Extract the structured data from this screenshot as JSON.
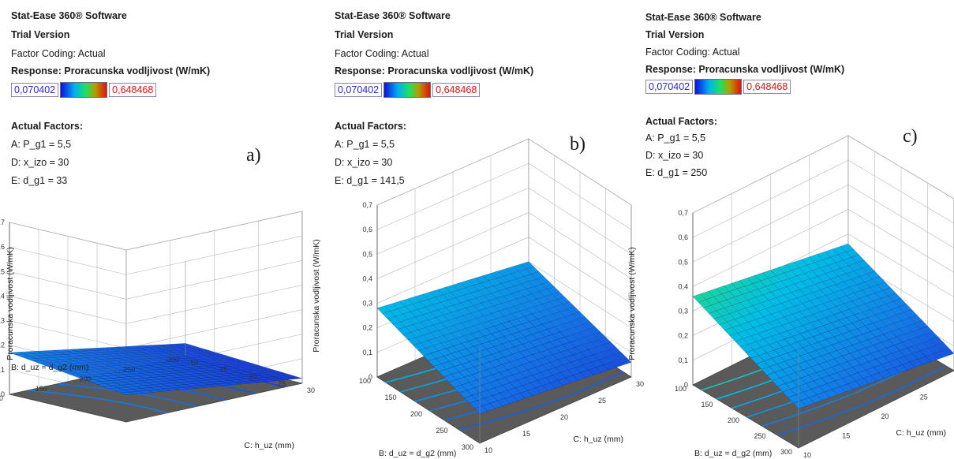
{
  "header": {
    "software": "Stat-Ease 360® Software",
    "version": "Trial Version",
    "coding": "Factor Coding: Actual",
    "response": "Response: Proracunska vodljivost (W/mK)",
    "legend_min": "0,070402",
    "legend_max": "0,648468",
    "actual_factors": "Actual Factors:"
  },
  "colors": {
    "legend_min": "#2a2ae0",
    "legend_max": "#e81010",
    "floor": "#5a5a5a",
    "surface_low": "#1b2fd6",
    "surface_high": "#30e860"
  },
  "axis_labels": {
    "z": "Proracunska vodljivost (W/mK)",
    "b": "B: d_uz = d_g2 (mm)",
    "c": "C: h_uz (mm)"
  },
  "panels": [
    {
      "label": "a)",
      "factors": [
        "A: P_g1 = 5,5",
        "D: x_izo = 30",
        "E: d_g1 = 33"
      ]
    },
    {
      "label": "b)",
      "factors": [
        "A: P_g1 = 5,5",
        "D: x_izo = 30",
        "E: d_g1 = 141,5"
      ]
    },
    {
      "label": "c)",
      "factors": [
        "A: P_g1 = 5,5",
        "D: x_izo = 30",
        "E: d_g1 = 250"
      ]
    }
  ],
  "chart_data": [
    {
      "type": "surface",
      "x": {
        "name": "B: d_uz = d_g2 (mm)",
        "ticks": [
          100,
          150,
          200,
          250,
          300
        ],
        "range": [
          100,
          300
        ]
      },
      "y": {
        "name": "C: h_uz (mm)",
        "ticks": [
          10,
          15,
          20,
          25,
          30
        ],
        "range": [
          10,
          30
        ]
      },
      "z": {
        "name": "Proracunska vodljivost (W/mK)",
        "ticks": [
          0,
          0.1,
          0.2,
          0.3,
          0.4,
          0.5,
          0.6,
          0.7
        ],
        "tick_labels": [
          "0",
          "0,1",
          "0,2",
          "0,3",
          "0,4",
          "0,5",
          "0,6",
          "0,7"
        ],
        "range": [
          0,
          0.7
        ]
      },
      "corners": {
        "b100_c10": 0.17,
        "b300_c10": 0.05,
        "b100_c30": 0.11,
        "b300_c30": 0.02
      },
      "contours": 5
    },
    {
      "type": "surface",
      "x": {
        "name": "B: d_uz = d_g2 (mm)",
        "ticks": [
          100,
          150,
          200,
          250,
          300
        ],
        "range": [
          100,
          300
        ]
      },
      "y": {
        "name": "C: h_uz (mm)",
        "ticks": [
          10,
          15,
          20,
          25,
          30
        ],
        "range": [
          10,
          30
        ]
      },
      "z": {
        "name": "Proracunska vodljivost (W/mK)",
        "ticks": [
          0,
          0.1,
          0.2,
          0.3,
          0.4,
          0.5,
          0.6,
          0.7
        ],
        "tick_labels": [
          "0",
          "0,1",
          "0,2",
          "0,3",
          "0,4",
          "0,5",
          "0,6",
          "0,7"
        ],
        "range": [
          0,
          0.7
        ]
      },
      "corners": {
        "b100_c10": 0.28,
        "b300_c10": 0.12,
        "b100_c30": 0.2,
        "b300_c30": 0.06
      },
      "contours": 6
    },
    {
      "type": "surface",
      "x": {
        "name": "B: d_uz = d_g2 (mm)",
        "ticks": [
          100,
          150,
          200,
          250,
          300
        ],
        "range": [
          100,
          300
        ]
      },
      "y": {
        "name": "C: h_uz (mm)",
        "ticks": [
          10,
          15,
          20,
          25,
          30
        ],
        "range": [
          10,
          30
        ]
      },
      "z": {
        "name": "Proracunska vodljivost (W/mK)",
        "ticks": [
          0,
          0.1,
          0.2,
          0.3,
          0.4,
          0.5,
          0.6,
          0.7
        ],
        "tick_labels": [
          "0",
          "0,1",
          "0,2",
          "0,3",
          "0,4",
          "0,5",
          "0,6",
          "0,7"
        ],
        "range": [
          0,
          0.7
        ]
      },
      "corners": {
        "b100_c10": 0.36,
        "b300_c10": 0.16,
        "b100_c30": 0.26,
        "b300_c30": 0.07
      },
      "contours": 6
    }
  ]
}
